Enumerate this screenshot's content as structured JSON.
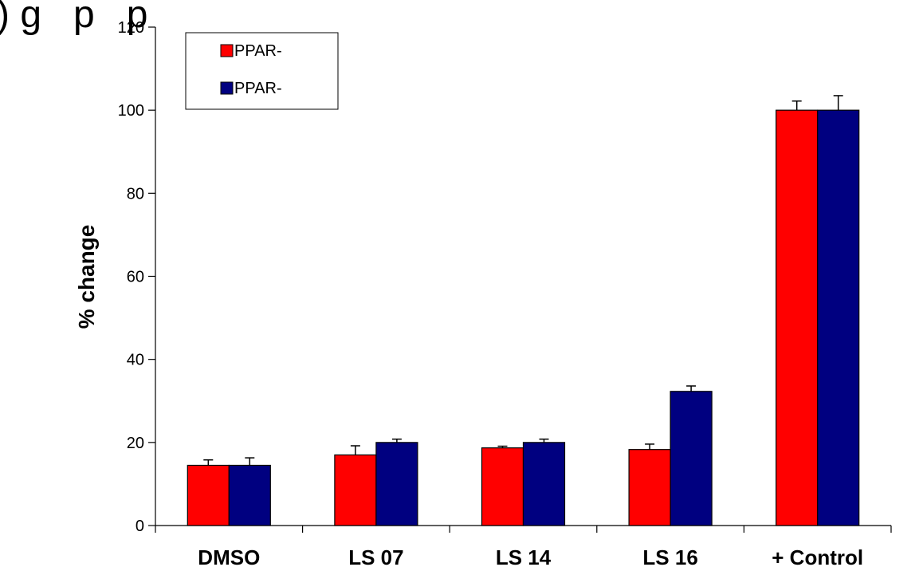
{
  "chart_data": {
    "type": "bar",
    "title": ") g   p   p",
    "xlabel": "",
    "ylabel": "% change",
    "ylim": [
      0,
      120
    ],
    "yticks": [
      0,
      20,
      40,
      60,
      80,
      100,
      120
    ],
    "categories": [
      "DMSO",
      "LS 07",
      "LS 14",
      "LS 16",
      "+ Control"
    ],
    "series": [
      {
        "name": "PPAR-",
        "color": "#ff0000",
        "values": [
          14.5,
          17,
          18.7,
          18.3,
          100
        ],
        "errors": [
          1.3,
          2.2,
          0.4,
          1.3,
          2.2
        ]
      },
      {
        "name": "PPAR-",
        "color": "#000080",
        "values": [
          14.5,
          20,
          20,
          32.3,
          100
        ],
        "errors": [
          1.8,
          0.8,
          0.8,
          1.3,
          3.5
        ]
      }
    ],
    "grid": false,
    "legend_position": "top-left"
  }
}
